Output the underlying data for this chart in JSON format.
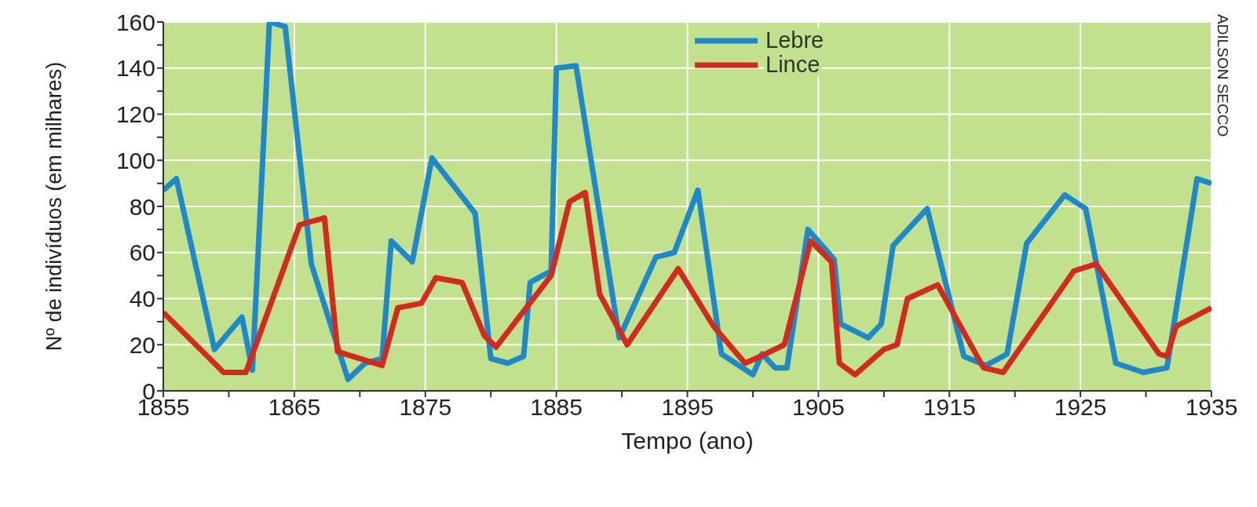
{
  "chart_data": {
    "type": "line",
    "xlabel": "Tempo (ano)",
    "ylabel": "Nº de indivíduos (em milhares)",
    "annotations": [
      "ADILSON SECCO"
    ],
    "xlim": [
      1855,
      1935
    ],
    "xticks": [
      1855,
      {
        "value": 1860,
        "label": null
      },
      1865,
      {
        "value": 1870,
        "label": null
      },
      1875,
      {
        "value": 1880,
        "label": null
      },
      1885,
      {
        "value": 1890,
        "label": null
      },
      1895,
      {
        "value": 1900,
        "label": null
      },
      1905,
      {
        "value": 1910,
        "label": null
      },
      1915,
      {
        "value": 1920,
        "label": null
      },
      1925,
      {
        "value": 1930,
        "label": null
      },
      1935
    ],
    "ylim": [
      0,
      160
    ],
    "yticks": [
      0,
      {
        "value": 10,
        "label": null
      },
      20,
      {
        "value": 30,
        "label": null
      },
      40,
      {
        "value": 50,
        "label": null
      },
      60,
      {
        "value": 70,
        "label": null
      },
      80,
      {
        "value": 90,
        "label": null
      },
      100,
      {
        "value": 110,
        "label": null
      },
      120,
      {
        "value": 130,
        "label": null
      },
      140,
      {
        "value": 150,
        "label": null
      },
      160
    ],
    "grid": true,
    "legend": "top",
    "marker": "none",
    "line_style": "solid",
    "series": [
      {
        "name": "Lebre",
        "color": "#1e88c8",
        "x": [
          1855,
          1856,
          1858.9,
          1861,
          1861.8,
          1863.1,
          1864.3,
          1866.3,
          1869.1,
          1870.4,
          1871.7,
          1872.4,
          1874,
          1875.5,
          1878.8,
          1880,
          1881.3,
          1882.5,
          1883,
          1884.6,
          1885,
          1886.5,
          1889.8,
          1892.6,
          1894,
          1895.8,
          1897.6,
          1900,
          1900.7,
          1901.7,
          1902.6,
          1904.2,
          1906.2,
          1906.7,
          1908.8,
          1909.8,
          1910.7,
          1913.3,
          1916.1,
          1917.8,
          1919.4,
          1920.9,
          1923.8,
          1925.4,
          1927.7,
          1929.8,
          1931.6,
          1933.9,
          1935
        ],
        "values": [
          87,
          92,
          18,
          32,
          9,
          160,
          158,
          55,
          5,
          12,
          14,
          65,
          56,
          101,
          77,
          14,
          12,
          15,
          47,
          52,
          140,
          141,
          23,
          58,
          60,
          87,
          16,
          7,
          16,
          10,
          10,
          70,
          57,
          29,
          23,
          29,
          63,
          79,
          15,
          11,
          16,
          64,
          85,
          79,
          12,
          8,
          10,
          92,
          90
        ]
      },
      {
        "name": "Lince",
        "color": "#d32a20",
        "x": [
          1855,
          1859.6,
          1861.3,
          1865.4,
          1867.3,
          1868.3,
          1871.7,
          1872.9,
          1874.7,
          1875.8,
          1877.8,
          1879.5,
          1880.4,
          1884.6,
          1886,
          1887.2,
          1888.3,
          1890.4,
          1894.3,
          1897,
          1899.4,
          1900.6,
          1902.4,
          1904.4,
          1906,
          1906.6,
          1907.8,
          1910,
          1911,
          1911.8,
          1914.1,
          1917.6,
          1919.1,
          1924.5,
          1926.2,
          1931,
          1931.6,
          1932.3,
          1935
        ],
        "values": [
          34,
          8,
          8,
          72,
          75,
          17,
          11,
          36,
          38,
          49,
          47,
          24,
          19,
          50,
          82,
          86,
          42,
          20,
          53,
          28,
          12,
          15,
          20,
          65,
          56,
          12,
          7,
          18,
          20,
          40,
          46,
          10,
          8,
          52,
          55,
          16,
          15,
          28,
          36
        ]
      }
    ]
  }
}
